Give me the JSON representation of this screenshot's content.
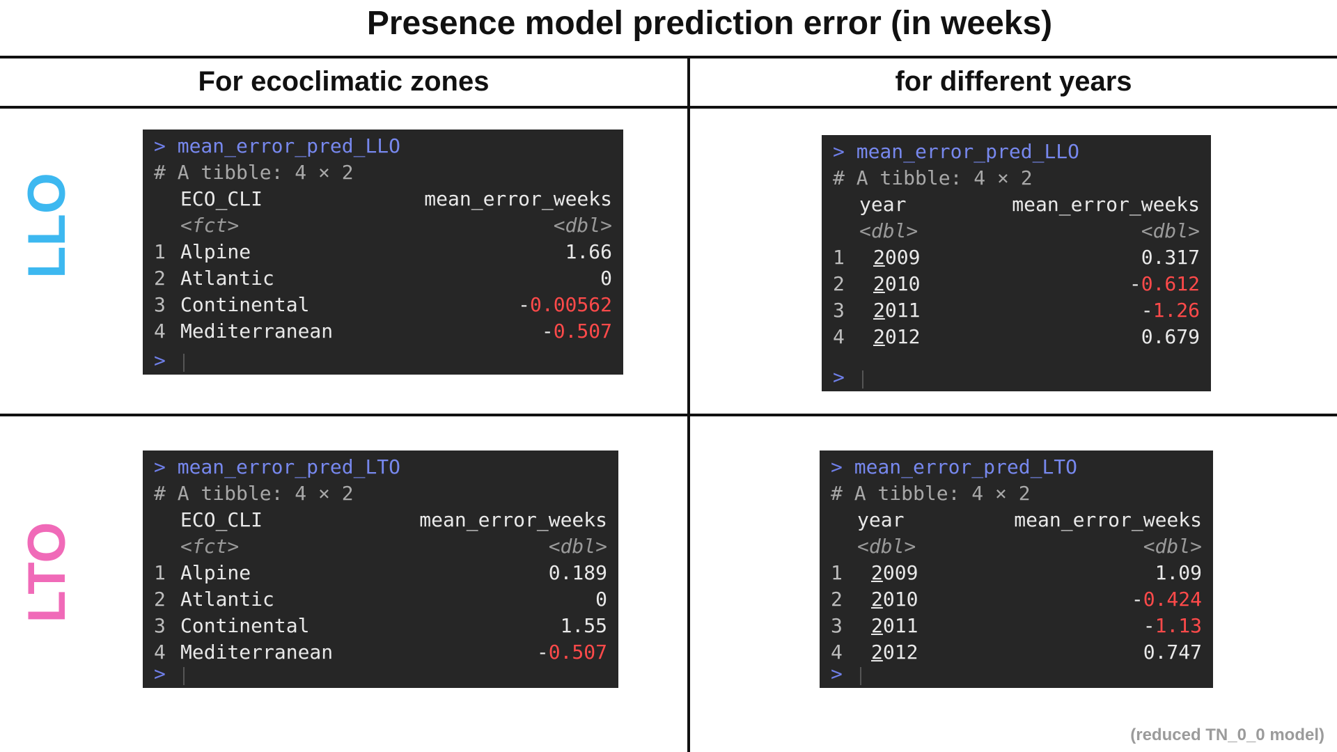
{
  "title": "Presence model prediction error (in weeks)",
  "columns": [
    "For ecoclimatic zones",
    "for different years"
  ],
  "rows": [
    {
      "label": "LLO",
      "color": "#3db8f0"
    },
    {
      "label": "LTO",
      "color": "#f06ab8"
    }
  ],
  "colors": {
    "console_bg": "#262626",
    "negative": "#ff4a4a",
    "command": "#7788ee"
  },
  "panels": {
    "llo_zones": {
      "prompt": ">",
      "command": "mean_error_pred_LLO",
      "tibble": "# A tibble: 4 × 2",
      "col1": "ECO_CLI",
      "col2": "mean_error_weeks",
      "type1": "<fct>",
      "type2": "<dbl>",
      "data": [
        {
          "n": "1",
          "name": "Alpine",
          "value_sign": "",
          "value": "1.66"
        },
        {
          "n": "2",
          "name": "Atlantic",
          "value_sign": "",
          "value": "0"
        },
        {
          "n": "3",
          "name": "Continental",
          "value_sign": "-",
          "value": "0.00562"
        },
        {
          "n": "4",
          "name": "Mediterranean",
          "value_sign": "-",
          "value": "0.507"
        }
      ]
    },
    "llo_years": {
      "prompt": ">",
      "command": "mean_error_pred_LLO",
      "tibble": "# A tibble: 4 × 2",
      "col1": "year",
      "col2": "mean_error_weeks",
      "type1": "<dbl>",
      "type2": "<dbl>",
      "data": [
        {
          "n": "1",
          "name": "2009",
          "value_sign": "",
          "value": "0.317"
        },
        {
          "n": "2",
          "name": "2010",
          "value_sign": "-",
          "value": "0.612"
        },
        {
          "n": "3",
          "name": "2011",
          "value_sign": "-",
          "value": "1.26"
        },
        {
          "n": "4",
          "name": "2012",
          "value_sign": "",
          "value": "0.679"
        }
      ]
    },
    "lto_zones": {
      "prompt": ">",
      "command": "mean_error_pred_LTO",
      "tibble": "# A tibble: 4 × 2",
      "col1": "ECO_CLI",
      "col2": "mean_error_weeks",
      "type1": "<fct>",
      "type2": "<dbl>",
      "data": [
        {
          "n": "1",
          "name": "Alpine",
          "value_sign": "",
          "value": "0.189"
        },
        {
          "n": "2",
          "name": "Atlantic",
          "value_sign": "",
          "value": "0"
        },
        {
          "n": "3",
          "name": "Continental",
          "value_sign": "",
          "value": "1.55"
        },
        {
          "n": "4",
          "name": "Mediterranean",
          "value_sign": "-",
          "value": "0.507"
        }
      ]
    },
    "lto_years": {
      "prompt": ">",
      "command": "mean_error_pred_LTO",
      "tibble": "# A tibble: 4 × 2",
      "col1": "year",
      "col2": "mean_error_weeks",
      "type1": "<dbl>",
      "type2": "<dbl>",
      "data": [
        {
          "n": "1",
          "name": "2009",
          "value_sign": "",
          "value": "1.09"
        },
        {
          "n": "2",
          "name": "2010",
          "value_sign": "-",
          "value": "0.424"
        },
        {
          "n": "3",
          "name": "2011",
          "value_sign": "-",
          "value": "1.13"
        },
        {
          "n": "4",
          "name": "2012",
          "value_sign": "",
          "value": "0.747"
        }
      ]
    }
  },
  "footnote": "(reduced TN_0_0 model)"
}
